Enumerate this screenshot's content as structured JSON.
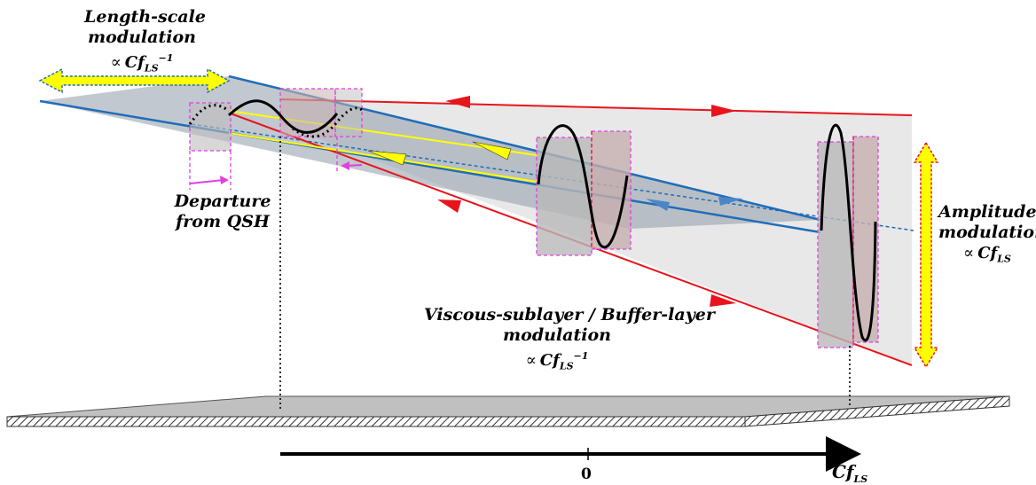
{
  "labels": {
    "length_scale": "Length-scale modulation",
    "length_scale_prop": "∝ Cf_LS^-1",
    "departure": "Departure from QSH",
    "viscous": "Viscous-sublayer / Buffer-layer modulation",
    "viscous_prop": "∝ Cf_LS^-1",
    "amplitude": "Amplitude modulation",
    "amplitude_prop": "∝ Cf_LS",
    "zero": "0",
    "axis": "Cf_LS"
  },
  "text_parts": {
    "length_scale_l1": "Length-scale",
    "length_scale_l2": "modulation",
    "departure_l1": "Departure",
    "departure_l2": "from QSH",
    "viscous_l1": "Viscous-sublayer / Buffer-layer",
    "viscous_l2": "modulation",
    "amplitude_l1": "Amplitude",
    "amplitude_l2": "modulation",
    "prop_symbol": "∝",
    "cf": "Cf",
    "ls": "LS",
    "inv": "−1"
  },
  "colors": {
    "red_line": "#e8141c",
    "blue_line": "#1f6db8",
    "yellow": "#ffff00",
    "magenta_dash": "#e040e0",
    "plane_grey": "#9a9a9a",
    "slab_fill": "#bdbdbd"
  }
}
